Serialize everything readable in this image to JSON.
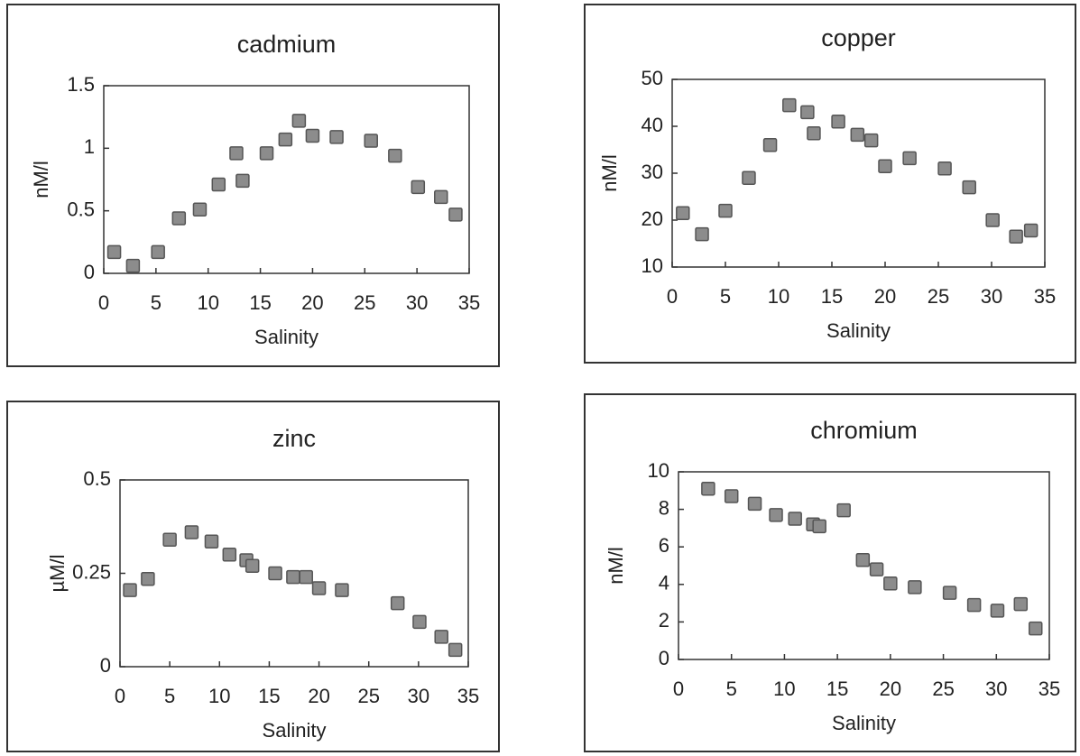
{
  "chart_data": [
    {
      "type": "scatter",
      "title": "cadmium",
      "x_label": "Salinity",
      "y_label": "nM/l",
      "color": "#8c8c8c",
      "x": [
        1,
        2.8,
        5.2,
        7.2,
        9.2,
        11,
        12.7,
        13.3,
        15.6,
        17.4,
        18.7,
        20,
        22.3,
        25.6,
        27.9,
        30.1,
        32.3,
        33.7
      ],
      "values": [
        0.17,
        0.06,
        0.17,
        0.44,
        0.51,
        0.71,
        0.96,
        0.74,
        0.96,
        1.07,
        1.22,
        1.1,
        1.09,
        1.06,
        0.94,
        0.69,
        0.61,
        0.47
      ],
      "xlim": [
        0,
        35
      ],
      "xticks": [
        0,
        5,
        10,
        15,
        20,
        25,
        30,
        35
      ],
      "ylim": [
        0,
        1.5
      ],
      "yticks": [
        0,
        0.5,
        1,
        1.5
      ]
    },
    {
      "type": "scatter",
      "title": "copper",
      "x_label": "Salinity",
      "y_label": "nM/l",
      "color": "#8c8c8c",
      "x": [
        1,
        2.8,
        5,
        7.2,
        9.2,
        11,
        12.7,
        13.3,
        15.6,
        17.4,
        18.7,
        20,
        22.3,
        25.6,
        27.9,
        30.1,
        32.3,
        33.7
      ],
      "values": [
        21.5,
        17,
        22,
        29,
        36,
        44.5,
        43,
        38.5,
        41,
        38.2,
        37,
        31.5,
        33.2,
        31,
        27,
        20,
        16.5,
        17.8
      ],
      "xlim": [
        0,
        35
      ],
      "xticks": [
        0,
        5,
        10,
        15,
        20,
        25,
        30,
        35
      ],
      "ylim": [
        10,
        50
      ],
      "yticks": [
        10,
        20,
        30,
        40,
        50
      ]
    },
    {
      "type": "scatter",
      "title": "zinc",
      "x_label": "Salinity",
      "y_label": "µM/l",
      "color": "#8c8c8c",
      "x": [
        1,
        2.8,
        5,
        7.2,
        9.2,
        11,
        12.7,
        13.3,
        15.6,
        17.4,
        18.7,
        20,
        22.3,
        27.9,
        30.1,
        32.3,
        33.7
      ],
      "values": [
        0.205,
        0.235,
        0.34,
        0.36,
        0.335,
        0.3,
        0.285,
        0.27,
        0.25,
        0.24,
        0.24,
        0.21,
        0.205,
        0.17,
        0.12,
        0.08,
        0.045
      ],
      "xlim": [
        0,
        35
      ],
      "xticks": [
        0,
        5,
        10,
        15,
        20,
        25,
        30,
        35
      ],
      "ylim": [
        0,
        0.5
      ],
      "yticks": [
        0,
        0.25,
        0.5
      ]
    },
    {
      "type": "scatter",
      "title": "chromium",
      "x_label": "Salinity",
      "y_label": "nM/l",
      "color": "#8c8c8c",
      "x": [
        2.8,
        5,
        7.2,
        9.2,
        11,
        12.7,
        13.3,
        15.6,
        17.4,
        18.7,
        20,
        22.3,
        25.6,
        27.9,
        30.1,
        32.3,
        33.7
      ],
      "values": [
        9.1,
        8.7,
        8.3,
        7.7,
        7.5,
        7.2,
        7.1,
        7.95,
        5.3,
        4.8,
        4.05,
        3.85,
        3.55,
        2.9,
        2.6,
        2.95,
        1.65
      ],
      "xlim": [
        0,
        35
      ],
      "xticks": [
        0,
        5,
        10,
        15,
        20,
        25,
        30,
        35
      ],
      "ylim": [
        0,
        10
      ],
      "yticks": [
        0,
        2,
        4,
        6,
        8,
        10
      ]
    }
  ]
}
